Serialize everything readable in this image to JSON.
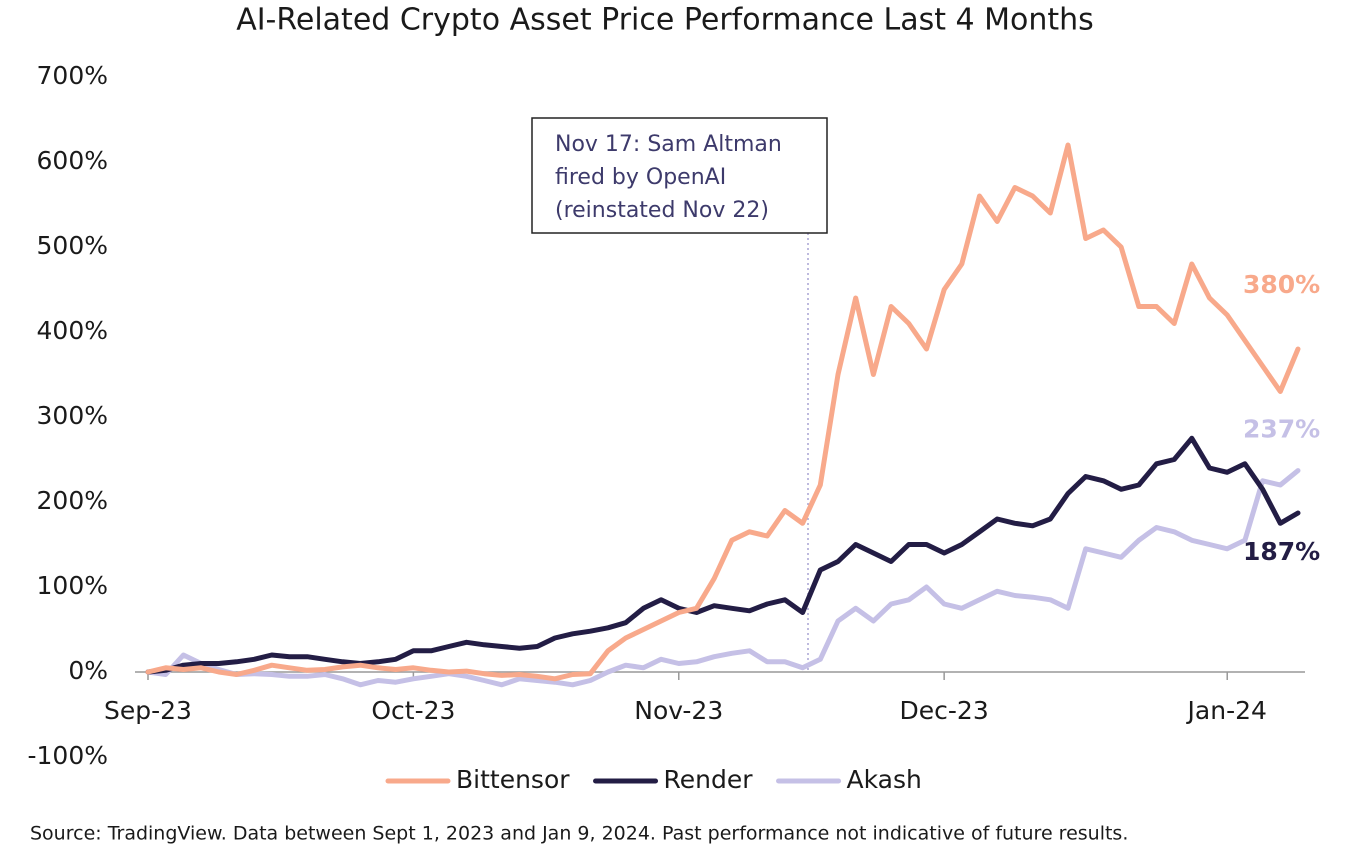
{
  "chart_data": {
    "type": "line",
    "title": "AI-Related Crypto Asset Price Performance Last 4 Months",
    "annotation_lines": [
      "Nov 17: Sam Altman",
      "fired by OpenAI",
      "(reinstated Nov 22)"
    ],
    "source": "Source: TradingView. Data between Sept 1, 2023 and Jan 9, 2024. Past performance not indicative of future results.",
    "categories": [
      "Sep-23",
      null,
      null,
      null,
      null,
      null,
      null,
      null,
      null,
      null,
      null,
      null,
      null,
      null,
      null,
      "Oct-23",
      null,
      null,
      null,
      null,
      null,
      null,
      null,
      null,
      null,
      null,
      null,
      null,
      null,
      null,
      "Nov-23",
      null,
      null,
      null,
      null,
      null,
      null,
      null,
      null,
      null,
      null,
      null,
      null,
      null,
      null,
      "Dec-23",
      null,
      null,
      null,
      null,
      null,
      null,
      null,
      null,
      null,
      null,
      null,
      null,
      null,
      null,
      null,
      "Jan-24",
      null,
      null,
      null,
      null
    ],
    "ylim": [
      -100,
      700
    ],
    "yticks": [
      {
        "value": -100,
        "label": "-100%"
      },
      {
        "value": 0,
        "label": "0%"
      },
      {
        "value": 100,
        "label": "100%"
      },
      {
        "value": 200,
        "label": "200%"
      },
      {
        "value": 300,
        "label": "300%"
      },
      {
        "value": 400,
        "label": "400%"
      },
      {
        "value": 500,
        "label": "500%"
      },
      {
        "value": 600,
        "label": "600%"
      },
      {
        "value": 700,
        "label": "700%"
      }
    ],
    "grid": false,
    "legend": "bottom",
    "series": [
      {
        "name": "Bittensor",
        "color": "#f8a98b",
        "values": [
          0,
          5,
          3,
          5,
          0,
          -3,
          2,
          8,
          5,
          2,
          3,
          6,
          8,
          5,
          3,
          5,
          2,
          0,
          1,
          -2,
          -4,
          -3,
          -5,
          -8,
          -3,
          -2,
          25,
          40,
          50,
          60,
          70,
          75,
          110,
          155,
          165,
          160,
          190,
          175,
          220,
          350,
          440,
          350,
          430,
          410,
          380,
          450,
          480,
          560,
          530,
          570,
          560,
          540,
          620,
          510,
          520,
          500,
          430,
          430,
          410,
          480,
          440,
          420,
          390,
          360,
          330,
          380
        ],
        "value_labels": [
          null,
          null,
          null,
          null,
          null,
          null,
          null,
          null,
          null,
          null,
          null,
          null,
          null,
          null,
          null,
          null,
          null,
          null,
          null,
          null,
          null,
          null,
          null,
          null,
          null,
          null,
          null,
          null,
          null,
          null,
          null,
          null,
          null,
          null,
          null,
          null,
          null,
          null,
          null,
          null,
          null,
          null,
          null,
          null,
          null,
          null,
          null,
          null,
          null,
          null,
          null,
          null,
          null,
          null,
          null,
          null,
          null,
          null,
          null,
          null,
          null,
          null,
          null,
          null,
          null,
          "380%"
        ]
      },
      {
        "name": "Render",
        "color": "#231d45",
        "values": [
          0,
          2,
          8,
          10,
          10,
          12,
          15,
          20,
          18,
          18,
          15,
          12,
          10,
          12,
          15,
          25,
          25,
          30,
          35,
          32,
          30,
          28,
          30,
          40,
          45,
          48,
          52,
          58,
          75,
          85,
          75,
          70,
          78,
          75,
          72,
          80,
          85,
          70,
          120,
          130,
          150,
          140,
          130,
          150,
          150,
          140,
          150,
          165,
          180,
          175,
          172,
          180,
          210,
          230,
          225,
          215,
          220,
          245,
          250,
          275,
          240,
          235,
          245,
          215,
          175,
          187
        ],
        "value_labels": [
          null,
          null,
          null,
          null,
          null,
          null,
          null,
          null,
          null,
          null,
          null,
          null,
          null,
          null,
          null,
          null,
          null,
          null,
          null,
          null,
          null,
          null,
          null,
          null,
          null,
          null,
          null,
          null,
          null,
          null,
          null,
          null,
          null,
          null,
          null,
          null,
          null,
          null,
          null,
          null,
          null,
          null,
          null,
          null,
          null,
          null,
          null,
          null,
          null,
          null,
          null,
          null,
          null,
          null,
          null,
          null,
          null,
          null,
          null,
          null,
          null,
          null,
          null,
          null,
          null,
          "187%"
        ]
      },
      {
        "name": "Akash",
        "color": "#c5c0e6",
        "values": [
          0,
          -3,
          20,
          10,
          3,
          -3,
          -2,
          -3,
          -5,
          -5,
          -3,
          -8,
          -15,
          -10,
          -12,
          -8,
          -5,
          -2,
          -5,
          -10,
          -15,
          -8,
          -10,
          -12,
          -15,
          -10,
          0,
          8,
          5,
          15,
          10,
          12,
          18,
          22,
          25,
          12,
          12,
          5,
          15,
          60,
          75,
          60,
          80,
          85,
          100,
          80,
          75,
          85,
          95,
          90,
          88,
          85,
          75,
          145,
          140,
          135,
          155,
          170,
          165,
          155,
          150,
          145,
          155,
          225,
          220,
          237
        ],
        "value_labels": [
          null,
          null,
          null,
          null,
          null,
          null,
          null,
          null,
          null,
          null,
          null,
          null,
          null,
          null,
          null,
          null,
          null,
          null,
          null,
          null,
          null,
          null,
          null,
          null,
          null,
          null,
          null,
          null,
          null,
          null,
          null,
          null,
          null,
          null,
          null,
          null,
          null,
          null,
          null,
          null,
          null,
          null,
          null,
          null,
          null,
          null,
          null,
          null,
          null,
          null,
          null,
          null,
          null,
          null,
          null,
          null,
          null,
          null,
          null,
          null,
          null,
          null,
          null,
          null,
          null,
          "237%"
        ]
      }
    ]
  }
}
